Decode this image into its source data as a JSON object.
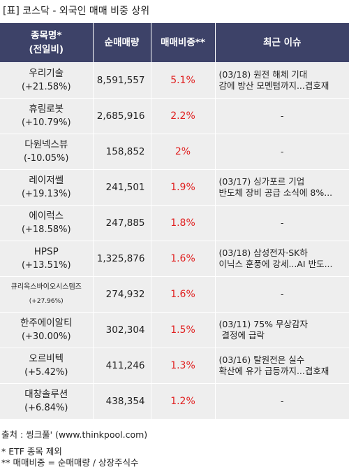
{
  "title": "[표] 코스닥 - 외국인 매매 비중 상위",
  "headers": {
    "name_line1": "종목명*",
    "name_line2": "(전일비)",
    "volume": "순매매량",
    "ratio": "매매비중**",
    "issue": "최근 이슈"
  },
  "rows": [
    {
      "name": "우리기술",
      "change": "(+21.58%)",
      "volume": "8,591,557",
      "ratio": "5.1%",
      "issue_line1": "(03/18) 원전 해체 기대",
      "issue_line2": "감에 방산 모멘텀까지...겹호재"
    },
    {
      "name": "휴림로봇",
      "change": "(+10.79%)",
      "volume": "2,685,916",
      "ratio": "2.2%",
      "issue_line1": "-",
      "issue_line2": ""
    },
    {
      "name": "다원넥스뷰",
      "change": "(-10.05%)",
      "volume": "158,852",
      "ratio": "2%",
      "issue_line1": "-",
      "issue_line2": ""
    },
    {
      "name": "레이저쎌",
      "change": "(+19.13%)",
      "volume": "241,501",
      "ratio": "1.9%",
      "issue_line1": "(03/17) 싱가포르 기업",
      "issue_line2": "반도체 장비 공급 소식에 8%..."
    },
    {
      "name": "에이럭스",
      "change": "(+18.58%)",
      "volume": "247,885",
      "ratio": "1.8%",
      "issue_line1": "-",
      "issue_line2": ""
    },
    {
      "name": "HPSP",
      "change": "(+13.51%)",
      "volume": "1,325,876",
      "ratio": "1.6%",
      "issue_line1": "(03/18) 삼성전자·SK하",
      "issue_line2": "이닉스 훈풍에 강세...AI 반도..."
    },
    {
      "name": "큐리옥스바이오시스템즈",
      "change": "(+27.96%)",
      "volume": "274,932",
      "ratio": "1.6%",
      "issue_line1": "-",
      "issue_line2": "",
      "small": true
    },
    {
      "name": "한주에이알티",
      "change": "(+30.00%)",
      "volume": "302,304",
      "ratio": "1.5%",
      "issue_line1": "(03/11) 75% 무상감자",
      "issue_line2": " 결정에 급락"
    },
    {
      "name": "오르비텍",
      "change": "(+5.42%)",
      "volume": "411,246",
      "ratio": "1.3%",
      "issue_line1": "(03/16) 탈원전은 실수",
      "issue_line2": "확산에 유가 급등까지...겹호재"
    },
    {
      "name": "대창솔루션",
      "change": "(+6.84%)",
      "volume": "438,354",
      "ratio": "1.2%",
      "issue_line1": "-",
      "issue_line2": ""
    }
  ],
  "footer": {
    "source": "출처 : 씽크풀' (www.thinkpool.com)",
    "note1": "* ETF 종목 제외",
    "note2": "** 매매비중 = 순매매량 / 상장주식수"
  },
  "colors": {
    "header_bg": "#3d4268",
    "row_bg": "#eeeeee",
    "ratio_red": "#e02020"
  }
}
